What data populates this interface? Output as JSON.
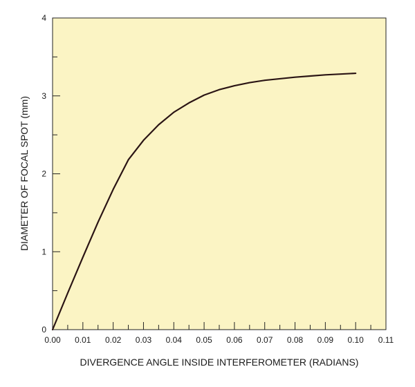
{
  "chart_data": {
    "type": "line",
    "xlabel": "DIVERGENCE ANGLE INSIDE INTERFEROMETER (RADIANS)",
    "ylabel": "DIAMETER OF FOCAL SPOT (mm)",
    "xlim": [
      0,
      0.11
    ],
    "ylim": [
      0,
      4
    ],
    "x_ticks": [
      "0.00",
      "0.01",
      "0.02",
      "0.03",
      "0.04",
      "0.05",
      "0.06",
      "0.07",
      "0.08",
      "0.09",
      "0.10",
      "0.11"
    ],
    "x_minor_step": 0.005,
    "y_ticks": [
      "0",
      "1",
      "2",
      "3",
      "4"
    ],
    "y_minor_step": 0.5,
    "grid": false,
    "plot_background": "#fbf4c4",
    "line_color": "#2a1414",
    "series": [
      {
        "name": "",
        "x": [
          0.0,
          0.005,
          0.01,
          0.015,
          0.02,
          0.025,
          0.03,
          0.035,
          0.04,
          0.045,
          0.05,
          0.055,
          0.06,
          0.065,
          0.07,
          0.075,
          0.08,
          0.085,
          0.09,
          0.095,
          0.1
        ],
        "y": [
          0.0,
          0.47,
          0.93,
          1.38,
          1.8,
          2.18,
          2.43,
          2.63,
          2.79,
          2.91,
          3.01,
          3.08,
          3.13,
          3.17,
          3.2,
          3.22,
          3.24,
          3.255,
          3.27,
          3.28,
          3.29
        ]
      }
    ]
  }
}
